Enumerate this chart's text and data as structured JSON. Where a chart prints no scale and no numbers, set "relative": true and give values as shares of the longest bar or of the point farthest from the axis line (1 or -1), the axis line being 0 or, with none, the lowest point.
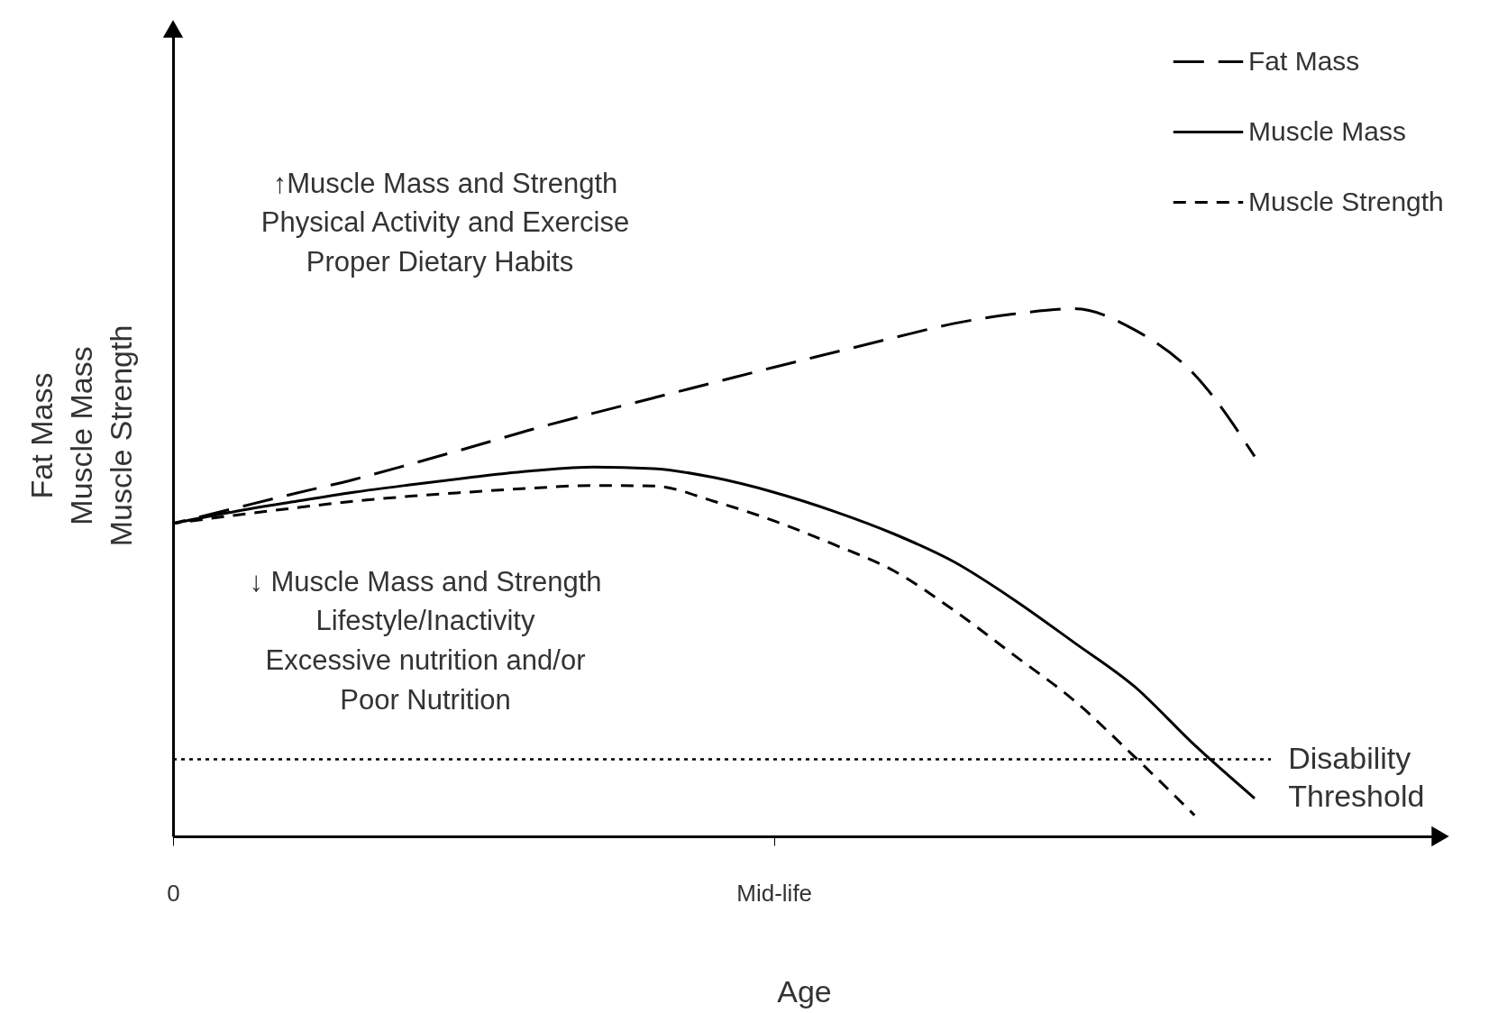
{
  "chart_data": {
    "type": "line",
    "relative": true,
    "xlabel": "Age",
    "ylabel": "Fat Mass\nMuscle Mass\nMuscle Strength",
    "categories": [
      "0",
      null,
      null,
      null,
      null,
      null,
      null,
      null,
      null,
      null,
      "Mid-life",
      null,
      null,
      null,
      null,
      null,
      null,
      null,
      null,
      null,
      null,
      null
    ],
    "series": [
      {
        "name": "Fat Mass",
        "color": "#000000",
        "line_style": "dashed",
        "values": [
          0.593,
          0.621,
          0.649,
          0.676,
          0.707,
          0.739,
          0.772,
          0.802,
          0.831,
          0.86,
          0.889,
          0.917,
          0.945,
          0.972,
          0.99,
          1,
          0.96,
          0.875,
          0.72,
          null,
          null,
          null
        ]
      },
      {
        "name": "Muscle Mass",
        "color": "#000000",
        "line_style": "solid",
        "values": [
          0.593,
          0.615,
          0.634,
          0.652,
          0.667,
          0.681,
          0.693,
          0.7,
          0.697,
          0.68,
          0.652,
          0.616,
          0.573,
          0.52,
          0.448,
          0.367,
          0.284,
          0.173,
          0.072,
          null,
          null,
          null
        ]
      },
      {
        "name": "Muscle Strength",
        "color": "#000000",
        "line_style": "dashed",
        "values": [
          0.593,
          0.608,
          0.622,
          0.635,
          0.645,
          0.653,
          0.66,
          0.665,
          0.664,
          0.635,
          0.598,
          0.553,
          0.503,
          0.428,
          0.343,
          0.257,
          0.151,
          0.04,
          null,
          null,
          null,
          null
        ]
      }
    ],
    "ref_lines": [
      {
        "axis": "y",
        "value": 0.146,
        "label": "Disability Threshold",
        "color": "#000000",
        "line_style": "dotted"
      }
    ],
    "annotations": [
      "↑Muscle Mass and Strength",
      "Physical Activity and Exercise",
      "Proper Dietary Habits",
      "↓ Muscle Mass and Strength",
      "Lifestyle/Inactivity",
      "Excessive nutrition and/or",
      "Poor Nutrition"
    ],
    "legend": "top right",
    "grid": false,
    "marker": "none"
  }
}
